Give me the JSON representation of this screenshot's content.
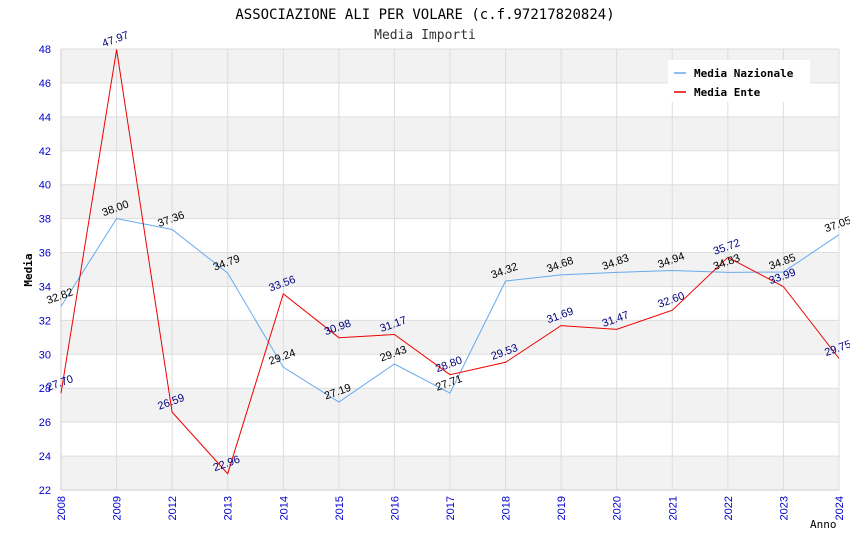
{
  "chart_data": {
    "type": "line",
    "title": "ASSOCIAZIONE ALI PER VOLARE (c.f.97217820824)",
    "subtitle": "Media Importi",
    "xlabel": "Anno",
    "ylabel": "Media",
    "categories": [
      "2008",
      "2009",
      "2012",
      "2013",
      "2014",
      "2015",
      "2016",
      "2017",
      "2018",
      "2019",
      "2020",
      "2021",
      "2022",
      "2023",
      "2024"
    ],
    "ylim": [
      22,
      48
    ],
    "yticks": [
      "22",
      "24",
      "26",
      "28",
      "30",
      "32",
      "34",
      "36",
      "38",
      "40",
      "42",
      "44",
      "46",
      "48"
    ],
    "grid": true,
    "legend_position": "top-right",
    "series": [
      {
        "name": "Media Nazionale",
        "color": "#66aaee",
        "values": [
          32.82,
          38.0,
          37.36,
          34.79,
          29.24,
          27.19,
          29.43,
          27.71,
          34.32,
          34.68,
          34.83,
          34.94,
          34.83,
          34.85,
          37.05
        ],
        "labels": [
          "32.82",
          "38.00",
          "37.36",
          "34.79",
          "29.24",
          "27.19",
          "29.43",
          "27.71",
          "34.32",
          "34.68",
          "34.83",
          "34.94",
          "34.83",
          "34.85",
          "37.05"
        ]
      },
      {
        "name": "Media Ente",
        "color": "#ee0000",
        "values": [
          27.7,
          47.97,
          26.59,
          22.96,
          33.56,
          30.98,
          31.17,
          28.8,
          29.53,
          31.69,
          31.47,
          32.6,
          35.72,
          33.99,
          29.75
        ],
        "labels": [
          "27.70",
          "47.97",
          "26.59",
          "22.96",
          "33.56",
          "30.98",
          "31.17",
          "28.80",
          "29.53",
          "31.69",
          "31.47",
          "32.60",
          "35.72",
          "33.99",
          "29.75"
        ]
      }
    ]
  }
}
